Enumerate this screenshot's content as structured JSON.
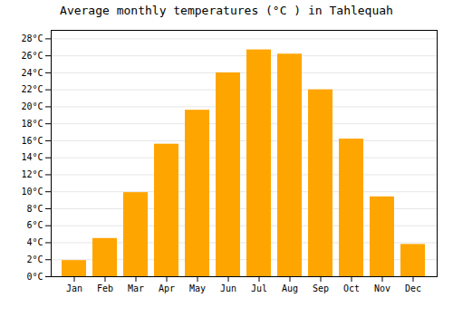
{
  "chart_data": {
    "type": "bar",
    "title": "Average monthly temperatures (°C ) in Tahlequah",
    "categories": [
      "Jan",
      "Feb",
      "Mar",
      "Apr",
      "May",
      "Jun",
      "Jul",
      "Aug",
      "Sep",
      "Oct",
      "Nov",
      "Dec"
    ],
    "values": [
      1.9,
      4.5,
      9.9,
      15.6,
      19.6,
      24.0,
      26.7,
      26.2,
      22.0,
      16.2,
      9.4,
      3.8
    ],
    "color": "#FFA500",
    "ylim": [
      0,
      29
    ],
    "yticks": [
      {
        "value": 0,
        "label": "0°C"
      },
      {
        "value": 2,
        "label": "2°C"
      },
      {
        "value": 4,
        "label": "4°C"
      },
      {
        "value": 6,
        "label": "6°C"
      },
      {
        "value": 8,
        "label": "8°C"
      },
      {
        "value": 10,
        "label": "10°C"
      },
      {
        "value": 12,
        "label": "12°C"
      },
      {
        "value": 14,
        "label": "14°C"
      },
      {
        "value": 16,
        "label": "16°C"
      },
      {
        "value": 18,
        "label": "18°C"
      },
      {
        "value": 20,
        "label": "20°C"
      },
      {
        "value": 22,
        "label": "22°C"
      },
      {
        "value": 24,
        "label": "24°C"
      },
      {
        "value": 26,
        "label": "26°C"
      },
      {
        "value": 28,
        "label": "28°C"
      }
    ],
    "grid": true
  }
}
